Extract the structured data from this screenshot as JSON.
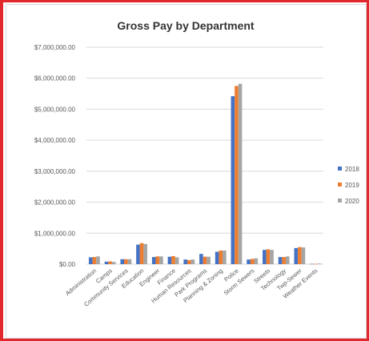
{
  "chart_data": {
    "type": "bar",
    "title": "Gross Pay by Department",
    "categories": [
      "Administration",
      "Camps",
      "Community Services",
      "Education",
      "Engineer",
      "Finance",
      "Human Resources",
      "Park Programs",
      "Planning & Zoning",
      "Police",
      "Storm Sewers",
      "Streets",
      "Technology",
      "Twp-Sewer",
      "Weather Events"
    ],
    "series": [
      {
        "name": "2018",
        "color": "#4472c4",
        "values": [
          220000,
          80000,
          160000,
          630000,
          230000,
          240000,
          150000,
          330000,
          400000,
          5420000,
          150000,
          460000,
          230000,
          520000,
          10000
        ]
      },
      {
        "name": "2019",
        "color": "#ed7d31",
        "values": [
          230000,
          90000,
          160000,
          680000,
          250000,
          260000,
          130000,
          240000,
          440000,
          5750000,
          170000,
          480000,
          230000,
          550000,
          10000
        ]
      },
      {
        "name": "2020",
        "color": "#a5a5a5",
        "values": [
          250000,
          70000,
          160000,
          650000,
          250000,
          220000,
          150000,
          240000,
          440000,
          5820000,
          190000,
          460000,
          250000,
          540000,
          20000
        ]
      }
    ],
    "ylim": [
      0,
      7000000
    ],
    "yticks": [
      "$0.00",
      "$1,000,000.00",
      "$2,000,000.00",
      "$3,000,000.00",
      "$4,000,000.00",
      "$5,000,000.00",
      "$6,000,000.00",
      "$7,000,000.00"
    ],
    "grid": true,
    "legend_position": "right"
  }
}
